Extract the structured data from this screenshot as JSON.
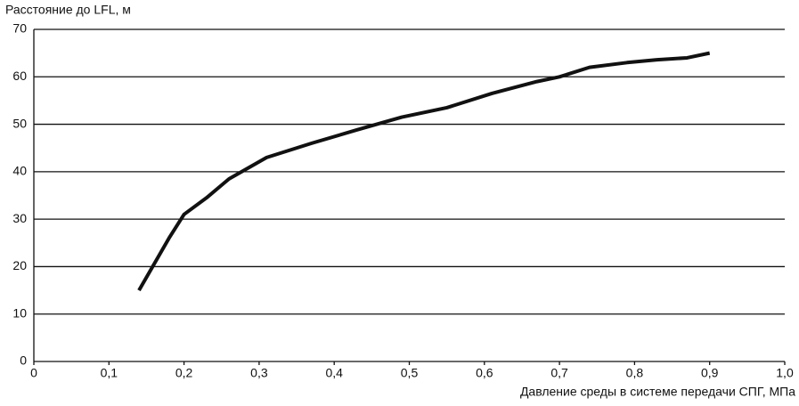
{
  "chart_data": {
    "type": "line",
    "y_label": "Расстояние до LFL, м",
    "x_label": "Давление среды в системе передачи СПГ, МПа",
    "x": [
      0.14,
      0.18,
      0.2,
      0.23,
      0.26,
      0.31,
      0.37,
      0.43,
      0.49,
      0.55,
      0.61,
      0.67,
      0.7,
      0.74,
      0.79,
      0.83,
      0.87,
      0.9
    ],
    "series": [
      {
        "color": "#111111",
        "values": [
          15,
          26,
          31,
          34.5,
          38.5,
          43,
          46,
          48.8,
          51.5,
          53.5,
          56.5,
          59,
          60,
          62,
          63,
          63.6,
          64,
          65
        ]
      }
    ],
    "xlim": [
      0,
      1.0
    ],
    "ylim": [
      0,
      70
    ],
    "xticks": [
      0,
      {
        "value": 0.1,
        "label": "0,1"
      },
      {
        "value": 0.2,
        "label": "0,2"
      },
      {
        "value": 0.3,
        "label": "0,3"
      },
      {
        "value": 0.4,
        "label": "0,4"
      },
      {
        "value": 0.5,
        "label": "0,5"
      },
      {
        "value": 0.6,
        "label": "0,6"
      },
      {
        "value": 0.7,
        "label": "0,7"
      },
      {
        "value": 0.8,
        "label": "0,8"
      },
      {
        "value": 0.9,
        "label": "0,9"
      },
      {
        "value": 1.0,
        "label": "1,0"
      }
    ],
    "yticks": [
      0,
      10,
      20,
      30,
      40,
      50,
      60,
      70
    ],
    "grid": true
  }
}
